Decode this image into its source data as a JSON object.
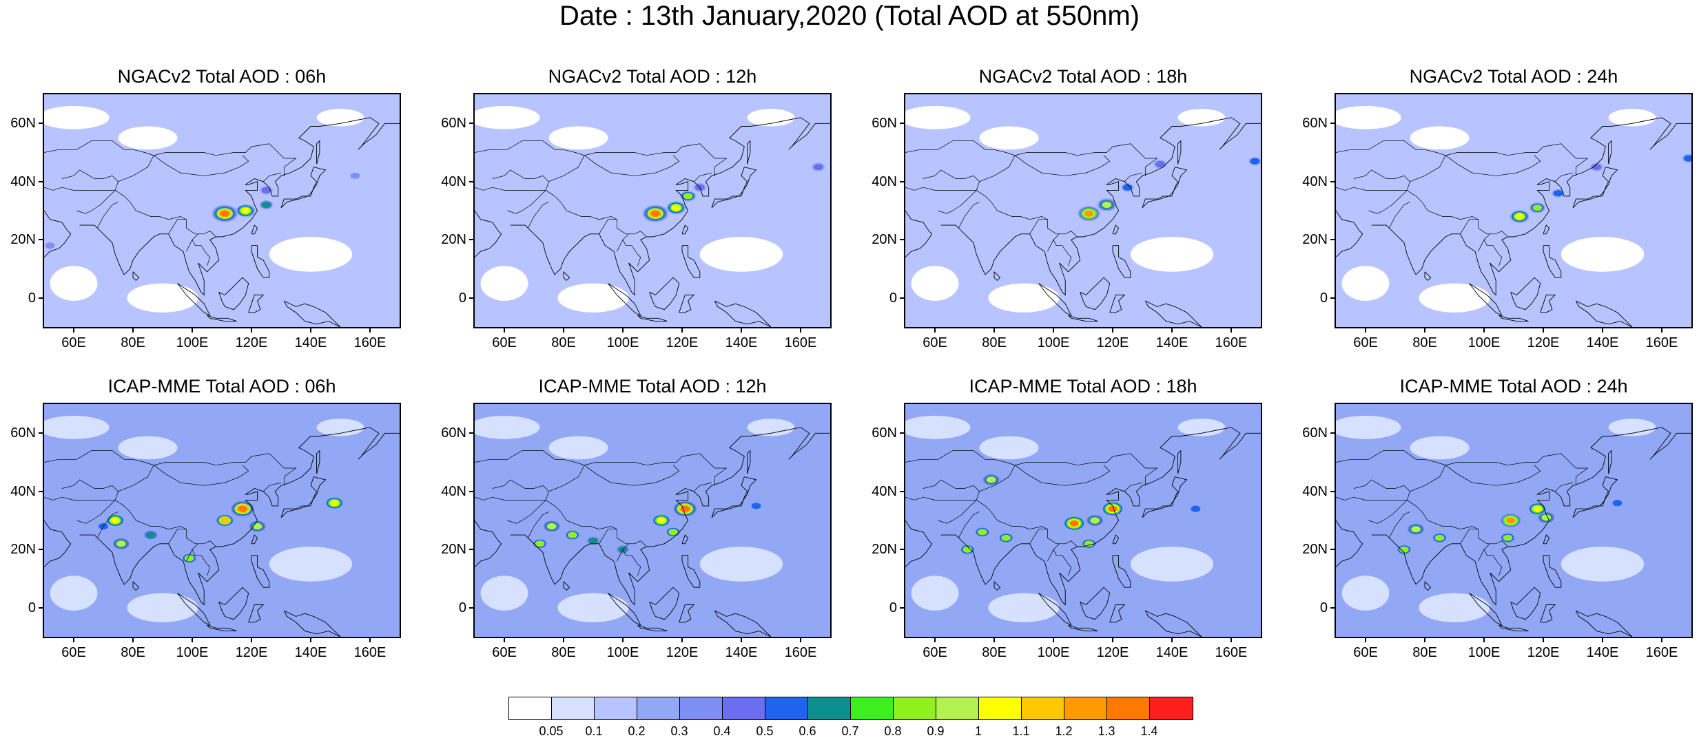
{
  "title": "Date : 13th January,2020 (Total AOD at 550nm)",
  "panels": [
    {
      "title": "NGACv2 Total AOD : 06h",
      "model": "NGACv2",
      "hour": "06h",
      "row": 0,
      "col": 0
    },
    {
      "title": "NGACv2 Total AOD : 12h",
      "model": "NGACv2",
      "hour": "12h",
      "row": 0,
      "col": 1
    },
    {
      "title": "NGACv2 Total AOD : 18h",
      "model": "NGACv2",
      "hour": "18h",
      "row": 0,
      "col": 2
    },
    {
      "title": "NGACv2 Total AOD : 24h",
      "model": "NGACv2",
      "hour": "24h",
      "row": 0,
      "col": 3
    },
    {
      "title": "ICAP-MME Total AOD : 06h",
      "model": "ICAP-MME",
      "hour": "06h",
      "row": 1,
      "col": 0
    },
    {
      "title": "ICAP-MME Total AOD : 12h",
      "model": "ICAP-MME",
      "hour": "12h",
      "row": 1,
      "col": 1
    },
    {
      "title": "ICAP-MME Total AOD : 18h",
      "model": "ICAP-MME",
      "hour": "18h",
      "row": 1,
      "col": 2
    },
    {
      "title": "ICAP-MME Total AOD : 24h",
      "model": "ICAP-MME",
      "hour": "24h",
      "row": 1,
      "col": 3
    }
  ],
  "map": {
    "lon_range": [
      50,
      170
    ],
    "lat_range": [
      -10,
      70
    ],
    "lon_ticks": [
      "60E",
      "80E",
      "100E",
      "120E",
      "140E",
      "160E"
    ],
    "lat_ticks": [
      "60N",
      "40N",
      "20N",
      "0"
    ]
  },
  "colorbar": {
    "labels": [
      "0.05",
      "0.1",
      "0.2",
      "0.3",
      "0.4",
      "0.5",
      "0.6",
      "0.7",
      "0.8",
      "0.9",
      "1",
      "1.1",
      "1.2",
      "1.3",
      "1.4"
    ],
    "colors": [
      "#ffffff",
      "#d6e0ff",
      "#b7c4ff",
      "#93a8f5",
      "#7f8ef2",
      "#6b6ef0",
      "#1e64f0",
      "#0e8f8f",
      "#3cf01e",
      "#8ff01e",
      "#b4f050",
      "#ffff00",
      "#ffc800",
      "#ff9b00",
      "#ff7800",
      "#ff1e1e"
    ]
  },
  "chart_data": {
    "type": "heatmap",
    "title": "Date : 13th January,2020 (Total AOD at 550nm)",
    "variable": "Total AOD at 550nm",
    "date": "13th January,2020",
    "x_ticks": [
      "60E",
      "80E",
      "100E",
      "120E",
      "140E",
      "160E"
    ],
    "y_ticks": [
      "60N",
      "40N",
      "20N",
      "0"
    ],
    "xlim": [
      50,
      170
    ],
    "ylim": [
      -10,
      70
    ],
    "levels": [
      0.05,
      0.1,
      0.2,
      0.3,
      0.4,
      0.5,
      0.6,
      0.7,
      0.8,
      0.9,
      1,
      1.1,
      1.2,
      1.3,
      1.4
    ],
    "background_aod": {
      "NGACv2": 0.1,
      "ICAP-MME": 0.2
    },
    "hotspots": [
      {
        "panel": 0,
        "lon": 111,
        "lat": 29,
        "aod": 1.4
      },
      {
        "panel": 0,
        "lon": 118,
        "lat": 30,
        "aod": 1.0
      },
      {
        "panel": 0,
        "lon": 125,
        "lat": 32,
        "aod": 0.6
      },
      {
        "panel": 0,
        "lon": 125,
        "lat": 37,
        "aod": 0.4
      },
      {
        "panel": 0,
        "lon": 155,
        "lat": 42,
        "aod": 0.3
      },
      {
        "panel": 0,
        "lon": 52,
        "lat": 18,
        "aod": 0.3
      },
      {
        "panel": 1,
        "lon": 111,
        "lat": 29,
        "aod": 1.4
      },
      {
        "panel": 1,
        "lon": 118,
        "lat": 31,
        "aod": 1.0
      },
      {
        "panel": 1,
        "lon": 122,
        "lat": 35,
        "aod": 0.8
      },
      {
        "panel": 1,
        "lon": 126,
        "lat": 38,
        "aod": 0.4
      },
      {
        "panel": 1,
        "lon": 166,
        "lat": 45,
        "aod": 0.4
      },
      {
        "panel": 2,
        "lon": 112,
        "lat": 29,
        "aod": 1.2
      },
      {
        "panel": 2,
        "lon": 118,
        "lat": 32,
        "aod": 0.9
      },
      {
        "panel": 2,
        "lon": 125,
        "lat": 38,
        "aod": 0.5
      },
      {
        "panel": 2,
        "lon": 136,
        "lat": 46,
        "aod": 0.4
      },
      {
        "panel": 2,
        "lon": 168,
        "lat": 47,
        "aod": 0.5
      },
      {
        "panel": 3,
        "lon": 112,
        "lat": 28,
        "aod": 1.0
      },
      {
        "panel": 3,
        "lon": 118,
        "lat": 31,
        "aod": 0.8
      },
      {
        "panel": 3,
        "lon": 125,
        "lat": 36,
        "aod": 0.5
      },
      {
        "panel": 3,
        "lon": 138,
        "lat": 45,
        "aod": 0.4
      },
      {
        "panel": 3,
        "lon": 169,
        "lat": 48,
        "aod": 0.5
      },
      {
        "panel": 4,
        "lon": 117,
        "lat": 34,
        "aod": 1.4
      },
      {
        "panel": 4,
        "lon": 111,
        "lat": 30,
        "aod": 1.1
      },
      {
        "panel": 4,
        "lon": 122,
        "lat": 28,
        "aod": 0.9
      },
      {
        "panel": 4,
        "lon": 74,
        "lat": 30,
        "aod": 1.0
      },
      {
        "panel": 4,
        "lon": 76,
        "lat": 22,
        "aod": 0.9
      },
      {
        "panel": 4,
        "lon": 86,
        "lat": 25,
        "aod": 0.7
      },
      {
        "panel": 4,
        "lon": 99,
        "lat": 17,
        "aod": 0.8
      },
      {
        "panel": 4,
        "lon": 148,
        "lat": 36,
        "aod": 1.0
      },
      {
        "panel": 4,
        "lon": 70,
        "lat": 28,
        "aod": 0.5
      },
      {
        "panel": 5,
        "lon": 121,
        "lat": 34,
        "aod": 1.4
      },
      {
        "panel": 5,
        "lon": 113,
        "lat": 30,
        "aod": 1.0
      },
      {
        "panel": 5,
        "lon": 117,
        "lat": 26,
        "aod": 0.8
      },
      {
        "panel": 5,
        "lon": 76,
        "lat": 28,
        "aod": 0.9
      },
      {
        "panel": 5,
        "lon": 83,
        "lat": 25,
        "aod": 0.8
      },
      {
        "panel": 5,
        "lon": 90,
        "lat": 23,
        "aod": 0.6
      },
      {
        "panel": 5,
        "lon": 72,
        "lat": 22,
        "aod": 0.8
      },
      {
        "panel": 5,
        "lon": 100,
        "lat": 20,
        "aod": 0.6
      },
      {
        "panel": 5,
        "lon": 145,
        "lat": 35,
        "aod": 0.5
      },
      {
        "panel": 6,
        "lon": 120,
        "lat": 34,
        "aod": 1.3
      },
      {
        "panel": 6,
        "lon": 107,
        "lat": 29,
        "aod": 1.3
      },
      {
        "panel": 6,
        "lon": 114,
        "lat": 30,
        "aod": 0.9
      },
      {
        "panel": 6,
        "lon": 112,
        "lat": 22,
        "aod": 0.8
      },
      {
        "panel": 6,
        "lon": 76,
        "lat": 26,
        "aod": 0.8
      },
      {
        "panel": 6,
        "lon": 84,
        "lat": 24,
        "aod": 0.8
      },
      {
        "panel": 6,
        "lon": 71,
        "lat": 20,
        "aod": 0.8
      },
      {
        "panel": 6,
        "lon": 79,
        "lat": 44,
        "aod": 0.9
      },
      {
        "panel": 6,
        "lon": 148,
        "lat": 34,
        "aod": 0.5
      },
      {
        "panel": 7,
        "lon": 109,
        "lat": 30,
        "aod": 1.2
      },
      {
        "panel": 7,
        "lon": 118,
        "lat": 34,
        "aod": 1.0
      },
      {
        "panel": 7,
        "lon": 121,
        "lat": 31,
        "aod": 0.9
      },
      {
        "panel": 7,
        "lon": 108,
        "lat": 24,
        "aod": 0.8
      },
      {
        "panel": 7,
        "lon": 77,
        "lat": 27,
        "aod": 0.9
      },
      {
        "panel": 7,
        "lon": 85,
        "lat": 24,
        "aod": 0.8
      },
      {
        "panel": 7,
        "lon": 73,
        "lat": 20,
        "aod": 0.8
      },
      {
        "panel": 7,
        "lon": 145,
        "lat": 36,
        "aod": 0.5
      }
    ]
  }
}
